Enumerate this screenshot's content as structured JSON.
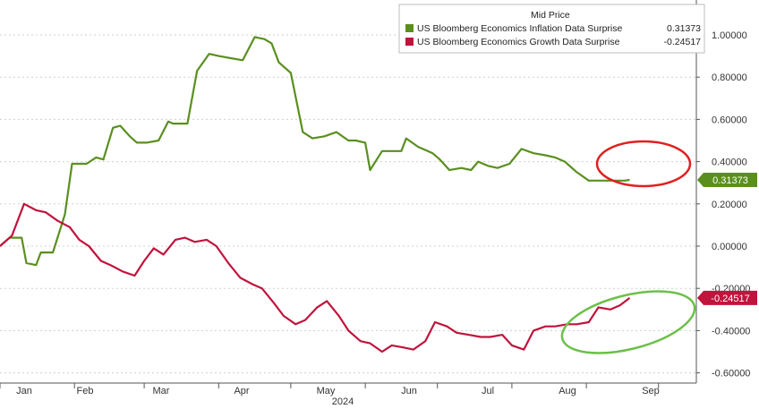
{
  "chart_data": {
    "type": "line",
    "legend": {
      "title": "Mid Price",
      "placement": "top-right",
      "entries": [
        {
          "label": "US Bloomberg Economics Inflation Data Surprise",
          "value": "0.31373",
          "color": "#5a8f1f"
        },
        {
          "label": "US Bloomberg Economics Growth Data Surprise",
          "value": "-0.24517",
          "color": "#c0143c"
        }
      ]
    },
    "xlabel": "2024",
    "x_ticks": [
      "Jan",
      "Feb",
      "Mar",
      "Apr",
      "May",
      "Jun",
      "Jul",
      "Aug",
      "Sep"
    ],
    "y_ticks": [
      "1.00000",
      "0.80000",
      "0.60000",
      "0.40000",
      "0.20000",
      "0.00000",
      "-0.20000",
      "-0.40000",
      "-0.60000"
    ],
    "ylim": [
      -0.6,
      1.08
    ],
    "x_range": [
      "2024-01-01",
      "2024-09-30"
    ],
    "grid": "horizontal dashed",
    "last_value_tags": [
      "0.31373",
      "-0.24517"
    ],
    "series": [
      {
        "name": "US Bloomberg Economics Inflation Data Surprise",
        "color": "#5a8f1f",
        "x": [
          "2024-01-01",
          "2024-01-05",
          "2024-01-10",
          "2024-01-12",
          "2024-01-16",
          "2024-01-18",
          "2024-01-20",
          "2024-01-23",
          "2024-01-28",
          "2024-01-31",
          "2024-02-02",
          "2024-02-03",
          "2024-02-06",
          "2024-02-10",
          "2024-02-13",
          "2024-02-17",
          "2024-02-20",
          "2024-02-24",
          "2024-02-27",
          "2024-03-02",
          "2024-03-07",
          "2024-03-11",
          "2024-03-13",
          "2024-03-19",
          "2024-03-23",
          "2024-03-28",
          "2024-04-01",
          "2024-04-06",
          "2024-04-11",
          "2024-04-16",
          "2024-04-20",
          "2024-04-23",
          "2024-04-26",
          "2024-05-01",
          "2024-05-06",
          "2024-05-10",
          "2024-05-15",
          "2024-05-20",
          "2024-05-25",
          "2024-05-28",
          "2024-06-01",
          "2024-06-03",
          "2024-06-08",
          "2024-06-13",
          "2024-06-16",
          "2024-06-18",
          "2024-06-23",
          "2024-06-27",
          "2024-06-29",
          "2024-07-02",
          "2024-07-06",
          "2024-07-11",
          "2024-07-15",
          "2024-07-18",
          "2024-07-22",
          "2024-07-26",
          "2024-07-31",
          "2024-08-05",
          "2024-08-10",
          "2024-08-15",
          "2024-08-19",
          "2024-08-23",
          "2024-08-28",
          "2024-09-02",
          "2024-09-06",
          "2024-09-11",
          "2024-09-15",
          "2024-09-17",
          "2024-09-19"
        ],
        "y": [
          0.0,
          0.04,
          0.04,
          -0.08,
          -0.09,
          -0.03,
          -0.03,
          -0.03,
          0.15,
          0.39,
          0.39,
          0.39,
          0.39,
          0.42,
          0.41,
          0.56,
          0.57,
          0.52,
          0.49,
          0.49,
          0.5,
          0.59,
          0.58,
          0.58,
          0.83,
          0.91,
          0.9,
          0.89,
          0.88,
          0.99,
          0.98,
          0.96,
          0.87,
          0.82,
          0.54,
          0.51,
          0.52,
          0.54,
          0.5,
          0.5,
          0.49,
          0.36,
          0.45,
          0.45,
          0.45,
          0.51,
          0.47,
          0.45,
          0.44,
          0.41,
          0.36,
          0.37,
          0.36,
          0.4,
          0.38,
          0.37,
          0.39,
          0.46,
          0.44,
          0.43,
          0.42,
          0.4,
          0.35,
          0.31,
          0.31,
          0.31,
          0.31,
          0.31,
          0.31373
        ]
      },
      {
        "name": "US Bloomberg Economics Growth Data Surprise",
        "color": "#c0143c",
        "x": [
          "2024-01-01",
          "2024-01-06",
          "2024-01-11",
          "2024-01-16",
          "2024-01-20",
          "2024-01-25",
          "2024-01-30",
          "2024-02-03",
          "2024-02-07",
          "2024-02-12",
          "2024-02-16",
          "2024-02-21",
          "2024-02-26",
          "2024-03-01",
          "2024-03-05",
          "2024-03-09",
          "2024-03-14",
          "2024-03-18",
          "2024-03-22",
          "2024-03-27",
          "2024-03-31",
          "2024-04-05",
          "2024-04-10",
          "2024-04-15",
          "2024-04-19",
          "2024-04-24",
          "2024-04-28",
          "2024-05-03",
          "2024-05-07",
          "2024-05-12",
          "2024-05-16",
          "2024-05-21",
          "2024-05-25",
          "2024-05-30",
          "2024-06-03",
          "2024-06-08",
          "2024-06-12",
          "2024-06-17",
          "2024-06-21",
          "2024-06-26",
          "2024-06-30",
          "2024-07-05",
          "2024-07-09",
          "2024-07-14",
          "2024-07-19",
          "2024-07-23",
          "2024-07-28",
          "2024-08-01",
          "2024-08-06",
          "2024-08-10",
          "2024-08-15",
          "2024-08-19",
          "2024-08-24",
          "2024-08-28",
          "2024-09-02",
          "2024-09-06",
          "2024-09-11",
          "2024-09-15",
          "2024-09-19"
        ],
        "y": [
          0.0,
          0.05,
          0.2,
          0.17,
          0.16,
          0.12,
          0.09,
          0.03,
          0.0,
          -0.07,
          -0.09,
          -0.12,
          -0.14,
          -0.07,
          -0.01,
          -0.04,
          0.03,
          0.04,
          0.02,
          0.03,
          0.0,
          -0.08,
          -0.15,
          -0.18,
          -0.2,
          -0.27,
          -0.33,
          -0.37,
          -0.35,
          -0.29,
          -0.26,
          -0.33,
          -0.4,
          -0.45,
          -0.46,
          -0.5,
          -0.47,
          -0.48,
          -0.49,
          -0.45,
          -0.36,
          -0.38,
          -0.41,
          -0.42,
          -0.43,
          -0.43,
          -0.42,
          -0.47,
          -0.49,
          -0.4,
          -0.38,
          -0.38,
          -0.37,
          -0.37,
          -0.36,
          -0.29,
          -0.3,
          -0.28,
          -0.24517
        ]
      }
    ]
  },
  "annotations": [
    {
      "name": "inflation-highlight-ellipse",
      "color": "#e02020"
    },
    {
      "name": "growth-highlight-ellipse",
      "color": "#6cc04a"
    }
  ]
}
